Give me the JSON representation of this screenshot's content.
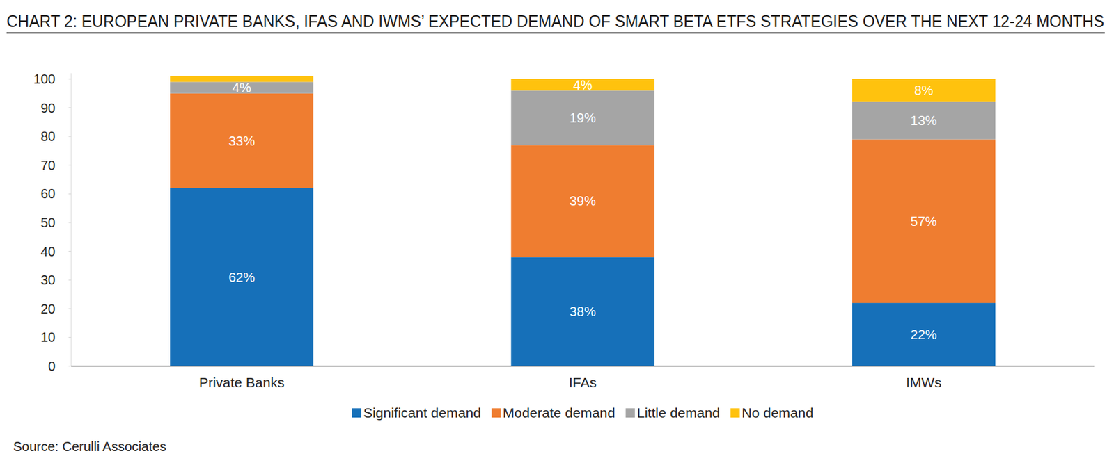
{
  "chart_data": {
    "type": "bar",
    "title": "CHART 2: EUROPEAN PRIVATE BANKS, IFAS AND IWMS’ EXPECTED DEMAND OF SMART BETA ETFS STRATEGIES OVER THE NEXT 12-24 MONTHS",
    "source": "Source: Cerulli Associates",
    "categories": [
      "Private Banks",
      "IFAs",
      "IMWs"
    ],
    "stacked": true,
    "data_labels": true,
    "grid": false,
    "legend": "bottom",
    "ylim": [
      0,
      102
    ],
    "yticks": [
      0,
      10,
      20,
      30,
      40,
      50,
      60,
      70,
      80,
      90,
      100
    ],
    "series": [
      {
        "name": "Significant demand",
        "color": "#1670b9",
        "values": [
          62,
          38,
          22
        ],
        "value_labels": [
          "62%",
          "38%",
          "22%"
        ]
      },
      {
        "name": "Moderate demand",
        "color": "#ef7d30",
        "values": [
          33,
          39,
          57
        ],
        "value_labels": [
          "33%",
          "39%",
          "57%"
        ]
      },
      {
        "name": "Little demand",
        "color": "#a5a5a5",
        "values": [
          4,
          19,
          13
        ],
        "value_labels": [
          "4%",
          "19%",
          "13%"
        ]
      },
      {
        "name": "No demand",
        "color": "#ffc20e",
        "values": [
          2,
          4,
          8
        ],
        "value_labels": [
          null,
          "4%",
          "8%"
        ]
      }
    ]
  }
}
